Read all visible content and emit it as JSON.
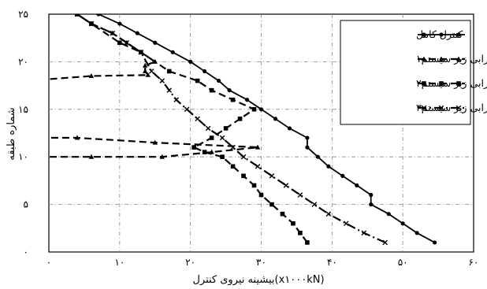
{
  "chart_data": {
    "type": "line",
    "xlabel": "بیشینه نیروی کنترل(x۱۰۰۰kN)",
    "ylabel": "شماره طبقه",
    "xlim": [
      0,
      60
    ],
    "ylim": [
      0,
      25
    ],
    "x_ticks": [
      0,
      10,
      20,
      30,
      40,
      50,
      60
    ],
    "x_tick_labels": [
      "۰",
      "۱۰",
      "۲۰",
      "۳۰",
      "۴۰",
      "۵۰",
      "۶۰"
    ],
    "y_ticks": [
      0,
      5,
      10,
      15,
      20,
      25
    ],
    "y_tick_labels": [
      "۰",
      "۵",
      "۱۰",
      "۱۵",
      "۲۰",
      "۲۵"
    ],
    "grid": true,
    "legend_position": "top-right",
    "series": [
      {
        "name": "کنترل کامل",
        "color": "#000000",
        "line_style": "solid",
        "marker": "circle",
        "points": [
          [
            54.5,
            1
          ],
          [
            52,
            2
          ],
          [
            50,
            3
          ],
          [
            48,
            4
          ],
          [
            45.5,
            5
          ],
          [
            45.5,
            6
          ],
          [
            43.5,
            7
          ],
          [
            41.5,
            8
          ],
          [
            39.5,
            9
          ],
          [
            38,
            10
          ],
          [
            36.5,
            11
          ],
          [
            36.5,
            12
          ],
          [
            34,
            13
          ],
          [
            32,
            14
          ],
          [
            30,
            15
          ],
          [
            28,
            16
          ],
          [
            25.5,
            17
          ],
          [
            24,
            18
          ],
          [
            22,
            19
          ],
          [
            20,
            20
          ],
          [
            17.5,
            21
          ],
          [
            15,
            22
          ],
          [
            12.5,
            23
          ],
          [
            10,
            24
          ],
          [
            7,
            25
          ],
          [
            5,
            26
          ]
        ]
      },
      {
        "name": "خرابی زیر سیستم۱",
        "color": "#000000",
        "line_style": "dashed",
        "marker": "triangle",
        "points": [
          [
            -3,
            10
          ],
          [
            6,
            10
          ],
          [
            16,
            10
          ],
          [
            23,
            10.5
          ],
          [
            29.5,
            11
          ],
          [
            15,
            11.5
          ],
          [
            4,
            12
          ],
          [
            -3,
            12
          ],
          [
            -3,
            18
          ],
          [
            6,
            18.5
          ],
          [
            14,
            18.6
          ],
          [
            13.6,
            19
          ],
          [
            13.6,
            19.6
          ],
          [
            15,
            20
          ],
          [
            13,
            21
          ],
          [
            11,
            22
          ],
          [
            9,
            23
          ],
          [
            6,
            24
          ],
          [
            4,
            25
          ],
          [
            2,
            26
          ]
        ]
      },
      {
        "name": "خرابی زیر سیستم۲",
        "color": "#000000",
        "line_style": "dashed",
        "marker": "square",
        "points": [
          [
            36.5,
            1
          ],
          [
            35.5,
            2
          ],
          [
            34.5,
            3
          ],
          [
            33,
            4
          ],
          [
            31.5,
            5
          ],
          [
            30,
            6
          ],
          [
            29,
            7
          ],
          [
            27.5,
            8
          ],
          [
            26,
            9
          ],
          [
            24.5,
            10
          ],
          [
            22,
            10.5
          ],
          [
            20.5,
            11
          ],
          [
            23,
            12
          ],
          [
            25,
            13
          ],
          [
            27,
            14
          ],
          [
            29,
            15
          ],
          [
            26,
            16
          ],
          [
            23,
            17
          ],
          [
            21,
            18
          ],
          [
            17,
            19
          ],
          [
            13,
            21
          ],
          [
            10,
            22
          ],
          [
            6,
            24
          ],
          [
            4,
            25
          ],
          [
            2,
            26
          ]
        ]
      },
      {
        "name": "خرابی زیر سیستم۳",
        "color": "#000000",
        "line_style": "dashdot",
        "marker": "x",
        "points": [
          [
            47.5,
            1
          ],
          [
            44.5,
            2
          ],
          [
            42,
            3
          ],
          [
            39.5,
            4
          ],
          [
            37.5,
            5
          ],
          [
            35.5,
            6
          ],
          [
            33.5,
            7
          ],
          [
            31.5,
            8
          ],
          [
            29.5,
            9
          ],
          [
            27.5,
            10
          ],
          [
            26,
            11
          ],
          [
            24.5,
            12
          ],
          [
            22.5,
            13
          ],
          [
            21,
            14
          ],
          [
            19.5,
            15
          ],
          [
            18,
            16
          ],
          [
            17,
            17
          ],
          [
            16,
            18
          ],
          [
            14.5,
            19
          ],
          [
            13,
            21
          ],
          [
            11,
            22
          ],
          [
            9,
            23
          ],
          [
            6,
            24
          ],
          [
            4,
            25
          ],
          [
            2,
            26
          ]
        ]
      }
    ]
  }
}
